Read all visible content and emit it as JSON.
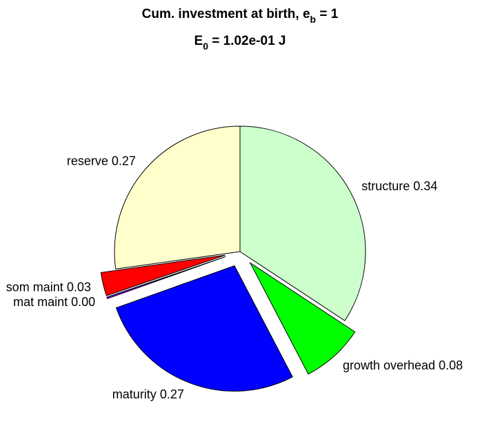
{
  "chart_data": {
    "type": "pie",
    "title": [
      "Cum. investment at birth, e",
      "b",
      " = 1"
    ],
    "subtitle": [
      "E",
      "0",
      " = 1.02e-01 J"
    ],
    "categories": [
      "structure",
      "growth overhead",
      "maturity",
      "mat maint",
      "som maint",
      "reserve"
    ],
    "values": [
      0.34,
      0.08,
      0.27,
      0.002,
      0.03,
      0.27
    ],
    "value_labels": [
      "0.34",
      "0.08",
      "0.27",
      "0.00",
      "0.03",
      "0.27"
    ],
    "colors": [
      "#ccffcc",
      "#00ff00",
      "#0000ff",
      "#8000ff",
      "#ff0000",
      "#ffffcc"
    ],
    "exploded": [
      false,
      true,
      true,
      true,
      true,
      false
    ]
  }
}
